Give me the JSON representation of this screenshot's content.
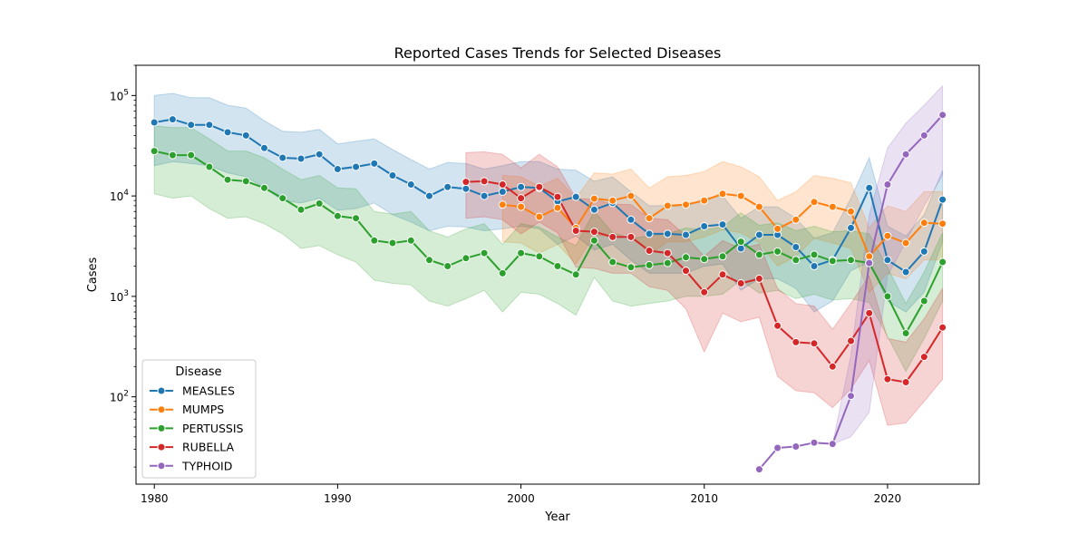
{
  "chart_data": {
    "type": "line",
    "title": "Reported Cases Trends for Selected Diseases",
    "xlabel": "Year",
    "ylabel": "Cases",
    "yscale": "log",
    "xlim": [
      1979,
      2025
    ],
    "ylim": [
      13.5,
      200000
    ],
    "x_ticks": [
      1980,
      1990,
      2000,
      2010,
      2020
    ],
    "y_ticks": [
      {
        "value": 100,
        "base": "10",
        "exp": "2"
      },
      {
        "value": 1000,
        "base": "10",
        "exp": "3"
      },
      {
        "value": 10000,
        "base": "10",
        "exp": "4"
      },
      {
        "value": 100000,
        "base": "10",
        "exp": "5"
      }
    ],
    "grid": false,
    "legend": {
      "title": "Disease",
      "position": "lower-left"
    },
    "series": [
      {
        "name": "MEASLES",
        "color": "#1f77b4",
        "x": [
          1980,
          1981,
          1982,
          1983,
          1984,
          1985,
          1986,
          1987,
          1988,
          1989,
          1990,
          1991,
          1992,
          1993,
          1994,
          1995,
          1996,
          1997,
          1998,
          1999,
          2000,
          2001,
          2002,
          2003,
          2004,
          2005,
          2006,
          2007,
          2008,
          2009,
          2010,
          2011,
          2012,
          2013,
          2014,
          2015,
          2016,
          2017,
          2018,
          2019,
          2020,
          2021,
          2022,
          2023
        ],
        "y": [
          54000,
          58000,
          51000,
          51000,
          43000,
          40000,
          30000,
          24000,
          23500,
          26000,
          18500,
          19500,
          21000,
          16000,
          13000,
          10000,
          12300,
          11800,
          10000,
          11000,
          12300,
          12000,
          8800,
          9800,
          7300,
          8500,
          5800,
          4200,
          4200,
          4100,
          5000,
          5200,
          3000,
          4100,
          4100,
          3100,
          2000,
          2300,
          4800,
          12000,
          2300,
          1750,
          2800,
          9200
        ],
        "lower": [
          20000,
          22000,
          21000,
          20000,
          17000,
          15500,
          12000,
          9000,
          8500,
          9500,
          7200,
          7500,
          8500,
          6500,
          5500,
          4500,
          5000,
          4900,
          4500,
          4700,
          5000,
          4700,
          3300,
          4000,
          2900,
          3300,
          2300,
          1700,
          1700,
          1700,
          2000,
          2100,
          1150,
          1500,
          1500,
          1200,
          700,
          900,
          1800,
          2200,
          900,
          700,
          1100,
          3500
        ],
        "upper": [
          100000,
          105000,
          95000,
          95000,
          80000,
          75000,
          56000,
          44000,
          43000,
          46000,
          33000,
          35000,
          37000,
          29000,
          23000,
          18500,
          21500,
          21000,
          18500,
          20000,
          22000,
          22000,
          18500,
          18000,
          14000,
          15500,
          11000,
          8000,
          8000,
          7800,
          9500,
          10000,
          6000,
          7800,
          7800,
          6000,
          3800,
          4300,
          9500,
          24000,
          5000,
          4000,
          6500,
          18000
        ]
      },
      {
        "name": "MUMPS",
        "color": "#ff7f0e",
        "x": [
          1999,
          2000,
          2001,
          2002,
          2003,
          2004,
          2005,
          2006,
          2007,
          2008,
          2009,
          2010,
          2011,
          2012,
          2013,
          2014,
          2015,
          2016,
          2017,
          2018,
          2019,
          2020,
          2021,
          2022,
          2023
        ],
        "y": [
          8200,
          7800,
          6200,
          7600,
          4800,
          9400,
          9000,
          10000,
          6000,
          8000,
          8200,
          9000,
          10500,
          10000,
          7800,
          4700,
          5800,
          8700,
          7800,
          7000,
          2500,
          4000,
          3400,
          5400,
          5300
        ],
        "lower": [
          3500,
          3400,
          2700,
          3300,
          2100,
          4100,
          3900,
          4300,
          2600,
          3500,
          3500,
          3900,
          4600,
          4300,
          3400,
          2000,
          2500,
          3800,
          3400,
          3000,
          1100,
          1700,
          1500,
          2300,
          2300
        ],
        "upper": [
          16000,
          15500,
          12500,
          15000,
          9500,
          17000,
          16500,
          18500,
          12000,
          15500,
          16000,
          17500,
          22000,
          19500,
          15500,
          9000,
          11000,
          16000,
          15000,
          13500,
          4800,
          8000,
          7000,
          11000,
          11000
        ]
      },
      {
        "name": "PERTUSSIS",
        "color": "#2ca02c",
        "x": [
          1980,
          1981,
          1982,
          1983,
          1984,
          1985,
          1986,
          1987,
          1988,
          1989,
          1990,
          1991,
          1992,
          1993,
          1994,
          1995,
          1996,
          1997,
          1998,
          1999,
          2000,
          2001,
          2002,
          2003,
          2004,
          2005,
          2006,
          2007,
          2008,
          2009,
          2010,
          2011,
          2012,
          2013,
          2014,
          2015,
          2016,
          2017,
          2018,
          2019,
          2020,
          2021,
          2022,
          2023
        ],
        "y": [
          28000,
          25500,
          25500,
          19500,
          14500,
          14000,
          12000,
          9500,
          7300,
          8400,
          6300,
          6000,
          3600,
          3400,
          3600,
          2300,
          2000,
          2400,
          2700,
          1700,
          2700,
          2500,
          2000,
          1650,
          3600,
          2200,
          1950,
          2050,
          2150,
          2450,
          2350,
          2500,
          3500,
          2600,
          2800,
          2300,
          2600,
          2250,
          2300,
          2150,
          1000,
          430,
          900,
          2200
        ],
        "lower": [
          10500,
          9500,
          10000,
          7500,
          6000,
          6200,
          5300,
          4200,
          3000,
          3200,
          2600,
          2200,
          1450,
          1350,
          1300,
          900,
          800,
          950,
          1150,
          700,
          1100,
          1050,
          850,
          650,
          1550,
          900,
          800,
          850,
          900,
          1000,
          1000,
          1050,
          1450,
          1080,
          1150,
          950,
          1050,
          920,
          950,
          870,
          400,
          180,
          380,
          900
        ],
        "upper": [
          50000,
          48000,
          48000,
          37000,
          28000,
          28000,
          24000,
          18500,
          14500,
          16000,
          12000,
          11800,
          7000,
          6600,
          7000,
          4500,
          3900,
          4700,
          5300,
          3300,
          5300,
          4900,
          3900,
          3200,
          7000,
          4300,
          3800,
          4000,
          4200,
          4800,
          4600,
          4900,
          6800,
          5100,
          5400,
          4500,
          5000,
          4400,
          4500,
          4200,
          1950,
          850,
          1750,
          4300
        ]
      },
      {
        "name": "RUBELLA",
        "color": "#d62728",
        "x": [
          1997,
          1998,
          1999,
          2000,
          2001,
          2002,
          2003,
          2004,
          2005,
          2006,
          2007,
          2008,
          2009,
          2010,
          2011,
          2012,
          2013,
          2014,
          2015,
          2016,
          2017,
          2018,
          2019,
          2020,
          2021,
          2022,
          2023
        ],
        "y": [
          13800,
          14000,
          13000,
          9500,
          12300,
          9800,
          4500,
          4400,
          3900,
          3900,
          2850,
          2700,
          1800,
          1100,
          1650,
          1350,
          1500,
          510,
          350,
          340,
          200,
          360,
          680,
          150,
          140,
          250,
          490
        ],
        "lower": [
          6000,
          6200,
          5800,
          4200,
          5500,
          4300,
          1950,
          1900,
          1700,
          1700,
          1250,
          1150,
          750,
          280,
          680,
          560,
          620,
          160,
          115,
          110,
          78,
          120,
          230,
          52,
          55,
          90,
          150
        ],
        "upper": [
          27000,
          27500,
          26000,
          19000,
          26000,
          19500,
          9500,
          9200,
          8300,
          8200,
          6000,
          5800,
          4000,
          2500,
          3600,
          3000,
          3300,
          1200,
          850,
          800,
          470,
          850,
          1600,
          380,
          350,
          600,
          1200
        ]
      },
      {
        "name": "TYPHOID",
        "color": "#9467bd",
        "x": [
          2013,
          2014,
          2015,
          2016,
          2017,
          2018,
          2019,
          2020,
          2021,
          2022,
          2023
        ],
        "y": [
          19,
          31,
          32,
          35,
          34,
          102,
          2150,
          13000,
          26000,
          40000,
          64000
        ],
        "lower": [
          19,
          31,
          32,
          35,
          34,
          40,
          70,
          1600,
          3500,
          8000,
          16000
        ],
        "upper": [
          19,
          31,
          32,
          35,
          34,
          260,
          6500,
          30000,
          53000,
          80000,
          125000
        ]
      }
    ]
  }
}
